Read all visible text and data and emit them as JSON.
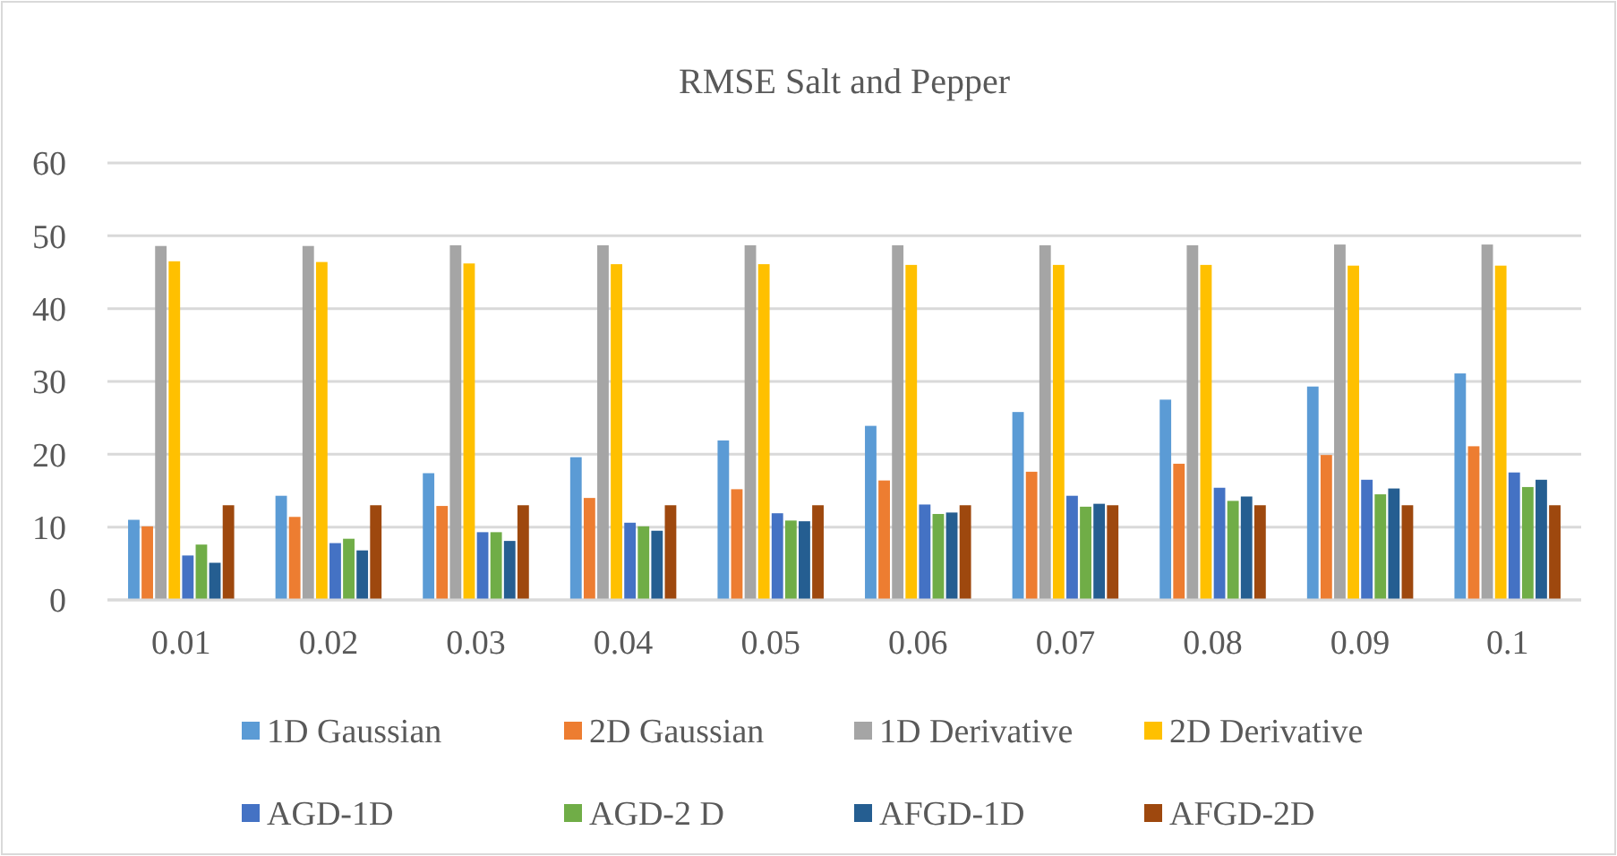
{
  "chart_data": {
    "type": "bar",
    "title": "RMSE Salt and Pepper",
    "categories": [
      "0.01",
      "0.02",
      "0.03",
      "0.04",
      "0.05",
      "0.06",
      "0.07",
      "0.08",
      "0.09",
      "0.1"
    ],
    "series": [
      {
        "name": "1D Gaussian",
        "color": "#5b9bd5",
        "values": [
          11,
          14.3,
          17.4,
          19.6,
          21.9,
          23.9,
          25.8,
          27.5,
          29.3,
          31.1
        ]
      },
      {
        "name": "2D Gaussian",
        "color": "#ed7d31",
        "values": [
          10.1,
          11.4,
          12.9,
          14,
          15.2,
          16.4,
          17.6,
          18.7,
          19.9,
          21.1
        ]
      },
      {
        "name": "1D Derivative",
        "color": "#a5a5a5",
        "values": [
          48.6,
          48.6,
          48.7,
          48.7,
          48.7,
          48.7,
          48.7,
          48.7,
          48.8,
          48.8
        ]
      },
      {
        "name": "2D Derivative",
        "color": "#ffc000",
        "values": [
          46.5,
          46.4,
          46.2,
          46.1,
          46.1,
          46,
          46,
          46,
          45.9,
          45.9
        ]
      },
      {
        "name": "AGD-1D",
        "color": "#4472c4",
        "values": [
          6.1,
          7.8,
          9.3,
          10.6,
          11.9,
          13.1,
          14.3,
          15.4,
          16.5,
          17.5
        ]
      },
      {
        "name": "AGD-2 D",
        "color": "#70ad47",
        "values": [
          7.6,
          8.4,
          9.3,
          10.1,
          10.9,
          11.8,
          12.8,
          13.6,
          14.5,
          15.5
        ]
      },
      {
        "name": "AFGD-1D",
        "color": "#255e91",
        "values": [
          5.1,
          6.8,
          8.1,
          9.5,
          10.8,
          12,
          13.2,
          14.2,
          15.3,
          16.5
        ]
      },
      {
        "name": "AFGD-2D",
        "color": "#9e480e",
        "values": [
          13,
          13,
          13,
          13,
          13,
          13,
          13,
          13,
          13,
          13
        ]
      }
    ],
    "ylim": [
      0,
      60
    ],
    "yticks": [
      0,
      10,
      20,
      30,
      40,
      50,
      60
    ],
    "grid": "y",
    "legend": "bottom"
  }
}
